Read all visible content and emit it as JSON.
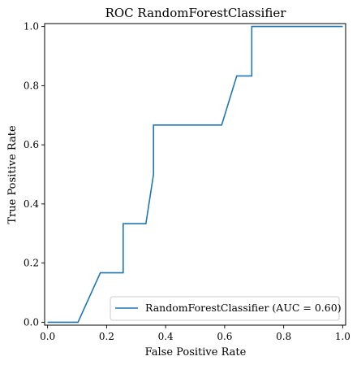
{
  "chart_data": {
    "type": "line",
    "title": "ROC RandomForestClassifier",
    "xlabel": "False Positive Rate",
    "ylabel": "True Positive Rate",
    "xlim": [
      -0.01,
      1.01
    ],
    "ylim": [
      -0.01,
      1.01
    ],
    "xticks": [
      0.0,
      0.2,
      0.4,
      0.6,
      0.8,
      1.0
    ],
    "yticks": [
      0.0,
      0.2,
      0.4,
      0.6,
      0.8,
      1.0
    ],
    "xtick_labels": [
      "0.0",
      "0.2",
      "0.4",
      "0.6",
      "0.8",
      "1.0"
    ],
    "ytick_labels": [
      "0.0",
      "0.2",
      "0.4",
      "0.6",
      "0.8",
      "1.0"
    ],
    "grid": false,
    "legend_position": "lower-right",
    "series": [
      {
        "name": "RandomForestClassifier (AUC = 0.60)",
        "color": "#1f77b4",
        "x": [
          0.0,
          0.103,
          0.179,
          0.256,
          0.256,
          0.333,
          0.333,
          0.359,
          0.359,
          0.59,
          0.641,
          0.692,
          0.692,
          1.0
        ],
        "y": [
          0.0,
          0.0,
          0.167,
          0.167,
          0.333,
          0.333,
          0.333,
          0.5,
          0.667,
          0.667,
          0.833,
          0.833,
          1.0,
          1.0
        ]
      }
    ]
  }
}
